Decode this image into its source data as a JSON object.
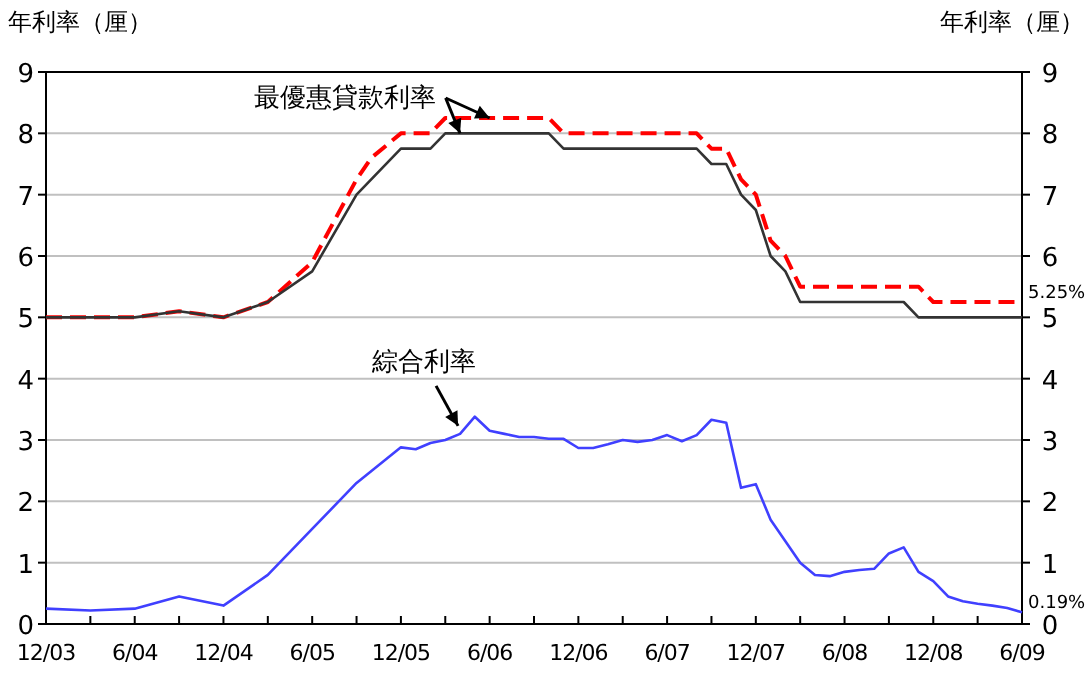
{
  "chart_data": {
    "type": "line",
    "ylabel": "年利率（厘）",
    "y2label": "年利率（厘）",
    "xlim": [
      "2003-12",
      "2009-06"
    ],
    "xticks": [
      {
        "value": "2003-12",
        "label": "12/03"
      },
      {
        "value": "2004-03",
        "label": null
      },
      {
        "value": "2004-06",
        "label": "6/04"
      },
      {
        "value": "2004-09",
        "label": null
      },
      {
        "value": "2004-12",
        "label": "12/04"
      },
      {
        "value": "2005-03",
        "label": null
      },
      {
        "value": "2005-06",
        "label": "6/05"
      },
      {
        "value": "2005-09",
        "label": null
      },
      {
        "value": "2005-12",
        "label": "12/05"
      },
      {
        "value": "2006-03",
        "label": null
      },
      {
        "value": "2006-06",
        "label": "6/06"
      },
      {
        "value": "2006-09",
        "label": null
      },
      {
        "value": "2006-12",
        "label": "12/06"
      },
      {
        "value": "2007-03",
        "label": null
      },
      {
        "value": "2007-06",
        "label": "6/07"
      },
      {
        "value": "2007-09",
        "label": null
      },
      {
        "value": "2007-12",
        "label": "12/07"
      },
      {
        "value": "2008-03",
        "label": null
      },
      {
        "value": "2008-06",
        "label": "6/08"
      },
      {
        "value": "2008-09",
        "label": null
      },
      {
        "value": "2008-12",
        "label": "12/08"
      },
      {
        "value": "2009-03",
        "label": null
      },
      {
        "value": "2009-06",
        "label": "6/09"
      }
    ],
    "ylim": [
      0,
      9
    ],
    "yticks": [
      0,
      1,
      2,
      3,
      4,
      5,
      6,
      7,
      8,
      9
    ],
    "y2lim": [
      0,
      9
    ],
    "y2ticks": [
      0,
      1,
      2,
      3,
      4,
      5,
      6,
      7,
      8,
      9
    ],
    "grid": "y",
    "series": [
      {
        "color": "#ff0000",
        "line_style": "dashed",
        "x": [
          "2003-12",
          "2004-06",
          "2004-09",
          "2004-12",
          "2005-03",
          "2005-06",
          "2005-09",
          "2005-10",
          "2005-12",
          "2006-02",
          "2006-03",
          "2006-10",
          "2006-11",
          "2007-08",
          "2007-09",
          "2007-10",
          "2007-11",
          "2007-12",
          "2008-01",
          "2008-02",
          "2008-03",
          "2008-11",
          "2008-12",
          "2009-06"
        ],
        "values": [
          5,
          5,
          5.1,
          5,
          5.25,
          5.9,
          7.25,
          7.6,
          8,
          8,
          8.25,
          8.25,
          8,
          8,
          7.75,
          7.75,
          7.25,
          7,
          6.25,
          6,
          5.5,
          5.5,
          5.25,
          5.25
        ]
      },
      {
        "color": "#333333",
        "line_style": "solid",
        "x": [
          "2003-12",
          "2004-06",
          "2004-09",
          "2004-12",
          "2005-03",
          "2005-06",
          "2005-09",
          "2005-12",
          "2006-02",
          "2006-03",
          "2006-10",
          "2006-11",
          "2007-08",
          "2007-09",
          "2007-10",
          "2007-11",
          "2007-12",
          "2008-01",
          "2008-02",
          "2008-03",
          "2008-10",
          "2008-11",
          "2009-06"
        ],
        "values": [
          5,
          5,
          5.1,
          5,
          5.25,
          5.75,
          7,
          7.75,
          7.75,
          8,
          8,
          7.75,
          7.75,
          7.5,
          7.5,
          7,
          6.75,
          6,
          5.75,
          5.25,
          5.25,
          5,
          5
        ]
      },
      {
        "color": "#4040ff",
        "line_style": "solid",
        "x": [
          "2003-12",
          "2004-03",
          "2004-06",
          "2004-09",
          "2004-12",
          "2005-03",
          "2005-06",
          "2005-09",
          "2005-12",
          "2006-01",
          "2006-02",
          "2006-03",
          "2006-04",
          "2006-05",
          "2006-06",
          "2006-07",
          "2006-08",
          "2006-09",
          "2006-10",
          "2006-11",
          "2006-12",
          "2007-01",
          "2007-02",
          "2007-03",
          "2007-04",
          "2007-05",
          "2007-06",
          "2007-07",
          "2007-08",
          "2007-09",
          "2007-10",
          "2007-11",
          "2007-12",
          "2008-01",
          "2008-02",
          "2008-03",
          "2008-04",
          "2008-05",
          "2008-06",
          "2008-07",
          "2008-08",
          "2008-09",
          "2008-10",
          "2008-11",
          "2008-12",
          "2009-01",
          "2009-02",
          "2009-03",
          "2009-04",
          "2009-05",
          "2009-06"
        ],
        "values": [
          0.25,
          0.22,
          0.25,
          0.45,
          0.3,
          0.8,
          1.55,
          2.3,
          2.88,
          2.85,
          2.95,
          3.0,
          3.1,
          3.38,
          3.15,
          3.1,
          3.05,
          3.05,
          3.02,
          3.02,
          2.87,
          2.87,
          2.93,
          3.0,
          2.97,
          3.0,
          3.08,
          2.98,
          3.08,
          3.33,
          3.28,
          2.22,
          2.28,
          1.7,
          1.35,
          1.0,
          0.8,
          0.78,
          0.85,
          0.88,
          0.9,
          1.15,
          1.25,
          0.85,
          0.7,
          0.45,
          0.37,
          0.33,
          0.3,
          0.26,
          0.19
        ]
      }
    ],
    "annotations": [
      {
        "text": "最優惠貸款利率",
        "x": "2006-06",
        "y": 8.25
      },
      {
        "text": "綜合利率",
        "x": "2006-04",
        "y": 3.1
      },
      {
        "text": "5.25%",
        "x": "2009-06",
        "y": 5.25
      },
      {
        "text": "0.19%",
        "x": "2009-06",
        "y": 0.19
      }
    ]
  }
}
